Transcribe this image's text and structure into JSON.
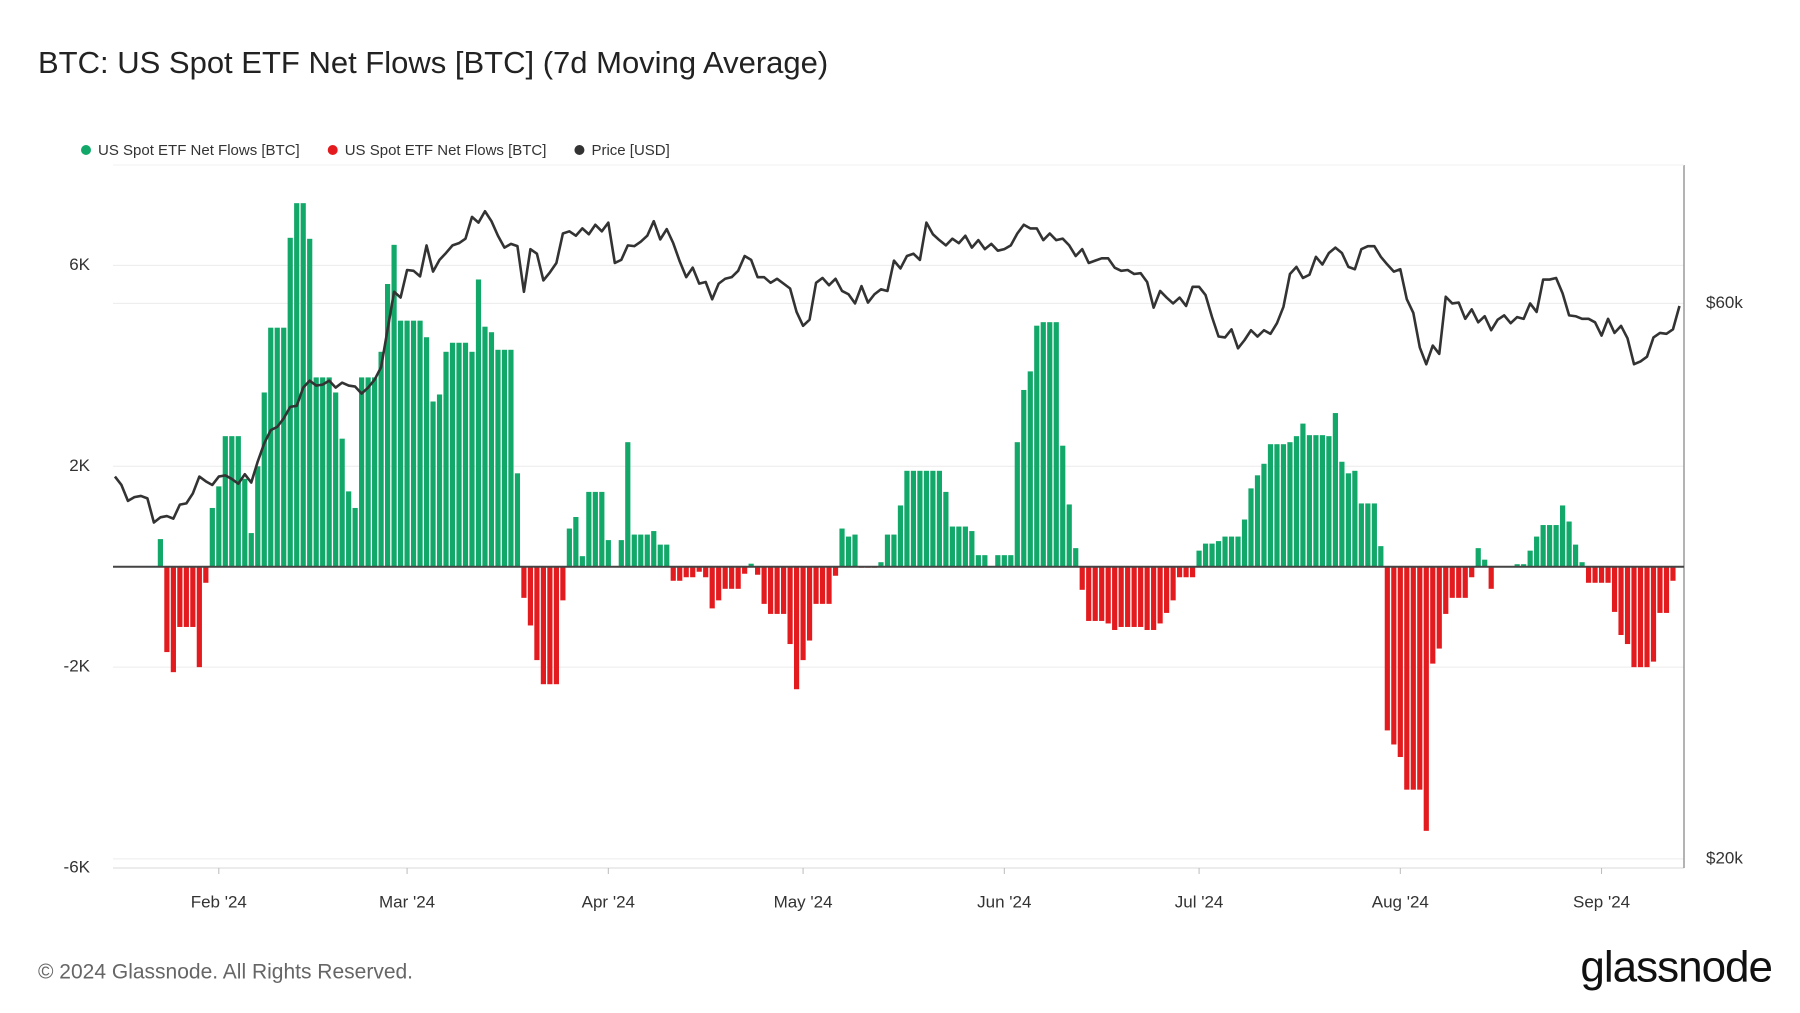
{
  "chart_data": {
    "type": "bar",
    "title": "BTC: US Spot ETF Net Flows [BTC] (7d Moving Average)",
    "copyright": "© 2024 Glassnode. All Rights Reserved.",
    "brand": "glassnode",
    "xlim": [
      0.7,
      242.7
    ],
    "xticks": [
      {
        "value": 17,
        "label": "Feb '24"
      },
      {
        "value": 46,
        "label": "Mar '24"
      },
      {
        "value": 77,
        "label": "Apr '24"
      },
      {
        "value": 107,
        "label": "May '24"
      },
      {
        "value": 138,
        "label": "Jun '24"
      },
      {
        "value": 168,
        "label": "Jul '24"
      },
      {
        "value": 199,
        "label": "Aug '24"
      },
      {
        "value": 230,
        "label": "Sep '24"
      }
    ],
    "ylim": [
      -6000,
      8000
    ],
    "yticks": [
      {
        "value": -6000,
        "label": "-6K"
      },
      {
        "value": -2000,
        "label": "-2K"
      },
      {
        "value": 2000,
        "label": "2K"
      },
      {
        "value": 6000,
        "label": "6K"
      }
    ],
    "y2lim": [
      19640,
      78900
    ],
    "y2log": true,
    "y2ticks": [
      {
        "value": 20000,
        "label": "$20k"
      },
      {
        "value": 60000,
        "label": "$60k"
      }
    ],
    "grid": true,
    "legend": "top-left",
    "series": [
      {
        "name": "US Spot ETF Net Flows [BTC]",
        "type": "bar",
        "color": "#12a869",
        "values": [
          null,
          null,
          null,
          null,
          null,
          null,
          null,
          null,
          550,
          null,
          null,
          null,
          null,
          null,
          null,
          null,
          1170,
          1600,
          2600,
          2600,
          2600,
          1750,
          670,
          2000,
          3470,
          4760,
          4760,
          4760,
          6550,
          7240,
          7240,
          6530,
          3770,
          3770,
          3770,
          3470,
          2550,
          1500,
          1170,
          3770,
          3770,
          3770,
          4280,
          5630,
          6410,
          4900,
          4900,
          4900,
          4900,
          4570,
          3290,
          3430,
          4280,
          4460,
          4460,
          4460,
          4280,
          5720,
          4780,
          4670,
          4320,
          4320,
          4320,
          1860,
          null,
          null,
          null,
          null,
          null,
          null,
          null,
          760,
          990,
          210,
          1490,
          1490,
          1490,
          530,
          0,
          530,
          2480,
          640,
          640,
          640,
          710,
          440,
          440,
          null,
          null,
          null,
          null,
          null,
          null,
          null,
          null,
          null,
          null,
          null,
          null,
          60,
          null,
          null,
          null,
          null,
          null,
          null,
          null,
          null,
          null,
          null,
          null,
          null,
          null,
          760,
          600,
          640,
          null,
          null,
          null,
          90,
          640,
          640,
          1220,
          1910,
          1910,
          1910,
          1910,
          1910,
          1910,
          1490,
          800,
          800,
          800,
          710,
          230,
          230,
          0,
          230,
          230,
          230,
          2480,
          3520,
          3890,
          4800,
          4870,
          4870,
          4870,
          2410,
          1240,
          370,
          null,
          null,
          null,
          null,
          null,
          null,
          null,
          null,
          null,
          null,
          null,
          null,
          null,
          null,
          null,
          null,
          null,
          null,
          320,
          460,
          460,
          510,
          600,
          600,
          600,
          940,
          1560,
          1820,
          2050,
          2440,
          2440,
          2440,
          2480,
          2600,
          2850,
          2620,
          2620,
          2620,
          2600,
          3060,
          2090,
          1860,
          1910,
          1260,
          1260,
          1260,
          410,
          null,
          null,
          null,
          null,
          null,
          null,
          null,
          null,
          null,
          null,
          null,
          null,
          null,
          null,
          370,
          140,
          null,
          0,
          0,
          0,
          50,
          50,
          320,
          600,
          830,
          830,
          830,
          1220,
          900,
          440,
          90,
          null,
          null,
          null,
          null,
          null,
          null,
          null,
          null,
          null,
          null,
          null,
          null,
          null,
          null,
          null
        ]
      },
      {
        "name": "US Spot ETF Net Flows [BTC]",
        "type": "bar",
        "color": "#e31b1f",
        "values": [
          null,
          null,
          null,
          null,
          null,
          null,
          null,
          null,
          null,
          -1700,
          -2100,
          -1200,
          -1200,
          -1200,
          -2000,
          -320,
          null,
          null,
          null,
          null,
          null,
          null,
          null,
          null,
          null,
          null,
          null,
          null,
          null,
          null,
          null,
          null,
          null,
          null,
          null,
          null,
          null,
          null,
          null,
          null,
          null,
          null,
          null,
          null,
          null,
          null,
          null,
          null,
          null,
          null,
          null,
          null,
          null,
          null,
          null,
          null,
          null,
          null,
          null,
          null,
          null,
          null,
          null,
          null,
          -620,
          -1170,
          -1860,
          -2340,
          -2340,
          -2340,
          -670,
          null,
          null,
          null,
          null,
          null,
          null,
          null,
          null,
          null,
          null,
          null,
          null,
          null,
          null,
          null,
          null,
          -280,
          -280,
          -210,
          -210,
          -100,
          -210,
          -830,
          -670,
          -440,
          -440,
          -440,
          -140,
          null,
          -160,
          -740,
          -940,
          -940,
          -940,
          -1540,
          -2440,
          -1860,
          -1470,
          -740,
          -740,
          -740,
          -180,
          null,
          null,
          null,
          -20,
          -20,
          -20,
          null,
          null,
          null,
          null,
          null,
          null,
          null,
          null,
          null,
          null,
          null,
          null,
          null,
          null,
          null,
          null,
          null,
          null,
          null,
          null,
          null,
          null,
          null,
          null,
          null,
          null,
          null,
          null,
          null,
          null,
          null,
          -460,
          -1080,
          -1080,
          -1080,
          -1130,
          -1260,
          -1200,
          -1200,
          -1200,
          -1200,
          -1260,
          -1260,
          -1130,
          -920,
          -670,
          -210,
          -210,
          -210,
          null,
          null,
          null,
          null,
          null,
          null,
          null,
          null,
          null,
          null,
          null,
          null,
          null,
          null,
          null,
          null,
          null,
          null,
          null,
          null,
          null,
          null,
          null,
          null,
          null,
          null,
          null,
          null,
          null,
          -3260,
          -3540,
          -3790,
          -4440,
          -4440,
          -4440,
          -5260,
          -1930,
          -1630,
          -940,
          -620,
          -620,
          -620,
          -210,
          null,
          null,
          -440,
          null,
          null,
          null,
          null,
          null,
          null,
          null,
          null,
          null,
          null,
          null,
          null,
          null,
          null,
          -320,
          -320,
          -320,
          -320,
          -900,
          -1360,
          -1540,
          -2000,
          -2000,
          -2000,
          -1890,
          -920,
          -920,
          -280,
          null
        ]
      },
      {
        "name": "Price [USD]",
        "type": "line",
        "axis": "y2",
        "color": "#333333",
        "values": [
          null,
          42600,
          41900,
          40600,
          40900,
          41000,
          40800,
          38900,
          39300,
          39400,
          39200,
          40300,
          40400,
          41200,
          42600,
          42200,
          41900,
          42600,
          42700,
          42400,
          42000,
          42800,
          42100,
          43900,
          45500,
          46700,
          47000,
          47800,
          48900,
          49000,
          50800,
          51500,
          51000,
          51100,
          51500,
          50800,
          51300,
          51000,
          50900,
          50200,
          50800,
          51600,
          52900,
          57000,
          61400,
          60700,
          64100,
          64000,
          63300,
          67300,
          63900,
          65400,
          66300,
          67300,
          67600,
          68200,
          71200,
          70400,
          72000,
          70600,
          68600,
          67000,
          67500,
          67200,
          61400,
          66800,
          66200,
          62800,
          63800,
          65000,
          68900,
          69200,
          68600,
          69600,
          68800,
          70100,
          69200,
          70400,
          65000,
          65400,
          67300,
          67200,
          67800,
          68600,
          70600,
          68100,
          69500,
          67600,
          65200,
          63200,
          64400,
          62400,
          62600,
          60500,
          62400,
          63000,
          63200,
          64000,
          65900,
          65400,
          63200,
          63200,
          62500,
          63000,
          62400,
          61800,
          59000,
          57400,
          58100,
          62500,
          63100,
          62200,
          63000,
          61500,
          61100,
          60000,
          62100,
          60100,
          61100,
          61700,
          61500,
          65300,
          64300,
          65900,
          66200,
          65400,
          70400,
          68800,
          68000,
          67300,
          68200,
          67600,
          68600,
          67000,
          68000,
          66800,
          67500,
          66600,
          66800,
          67300,
          68900,
          70100,
          69600,
          69600,
          68000,
          68900,
          68000,
          68200,
          67300,
          65900,
          66800,
          65000,
          65300,
          65600,
          65600,
          64400,
          64000,
          64100,
          63600,
          63700,
          62600,
          59500,
          61500,
          60700,
          60000,
          60700,
          59700,
          62000,
          62000,
          61000,
          58400,
          56200,
          56100,
          57000,
          54900,
          55800,
          56900,
          56200,
          56900,
          56500,
          57700,
          59600,
          63600,
          64500,
          63100,
          63500,
          65800,
          64800,
          66300,
          67000,
          66300,
          64500,
          64200,
          66800,
          67200,
          67200,
          65800,
          64800,
          63900,
          64200,
          60500,
          58900,
          55000,
          53200,
          55200,
          54300,
          60800,
          60000,
          60100,
          58200,
          59300,
          57800,
          58500,
          56900,
          58100,
          58600,
          57700,
          58400,
          58200,
          60000,
          59000,
          62900,
          62900,
          63100,
          61200,
          58600,
          58500,
          58200,
          58200,
          57800,
          56300,
          58200,
          56600,
          57400,
          56000,
          53200,
          53500,
          54000,
          56100,
          56600,
          56500,
          57000,
          59700
        ]
      }
    ]
  }
}
